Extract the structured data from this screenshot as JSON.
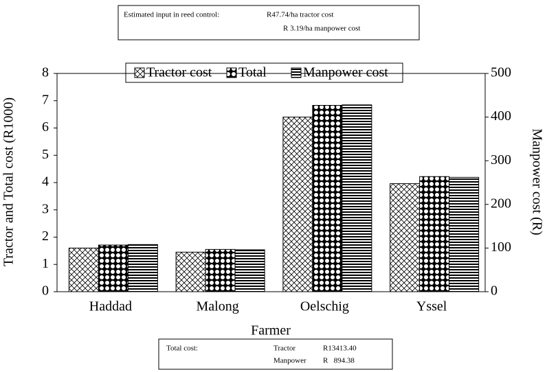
{
  "chart_data": {
    "type": "bar",
    "categories": [
      "Haddad",
      "Malong",
      "Oelschig",
      "Yssel"
    ],
    "series": [
      {
        "name": "Tractor cost",
        "color": "#000000",
        "pattern": "crosshatch",
        "values": [
          1.6,
          1.45,
          6.4,
          3.96
        ]
      },
      {
        "name": "Total",
        "color": "#000000",
        "pattern": "dots",
        "values": [
          1.71,
          1.55,
          6.83,
          4.22
        ]
      },
      {
        "name": "Manpower cost",
        "color": "#000000",
        "pattern": "hlines",
        "axis": "y2",
        "values": [
          108,
          96,
          428,
          262
        ]
      }
    ],
    "xlabel": "Farmer",
    "ylabel": "Tractor and Total cost (R1000)",
    "y2label": "Manpower cost (R)",
    "ylim": [
      0,
      8
    ],
    "yticks": [
      0,
      1,
      2,
      3,
      4,
      5,
      6,
      7,
      8
    ],
    "y2lim": [
      0,
      500
    ],
    "y2ticks": [
      0,
      100,
      200,
      300,
      400,
      500
    ],
    "legend": "top",
    "annotations": {
      "top": {
        "heading": "Estimated input in reed control:",
        "lines": [
          "R47.74/ha tractor cost",
          "R 3.19/ha manpower cost"
        ]
      },
      "bottom": {
        "heading": "Total cost:",
        "rows": [
          [
            "Tractor",
            "R13413.40"
          ],
          [
            "Manpower",
            "R   894.38"
          ]
        ]
      }
    }
  }
}
